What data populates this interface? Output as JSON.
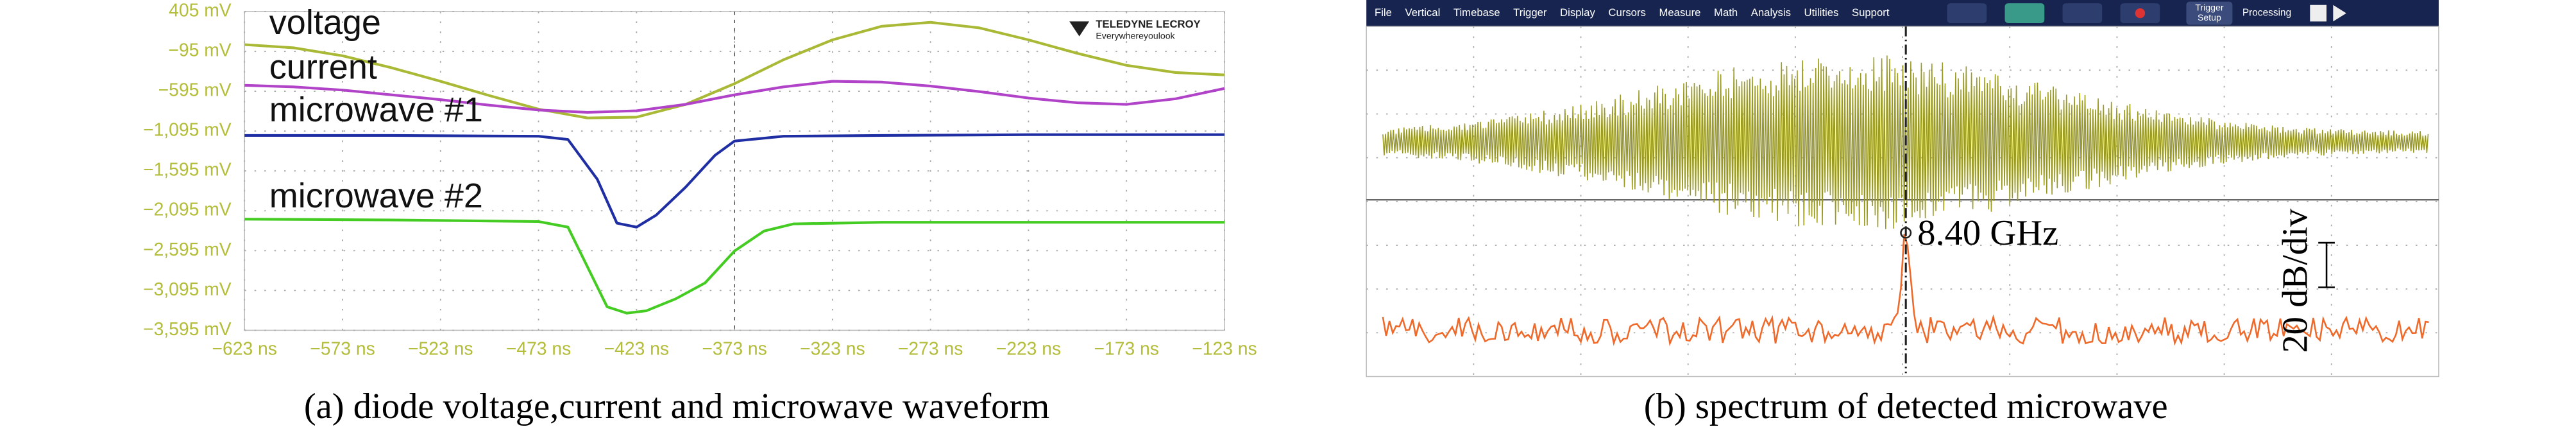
{
  "chart_data": {
    "type": "line",
    "xlim": [
      -623,
      -123
    ],
    "ylim": [
      -3595,
      405
    ],
    "xticks": [
      {
        "value": -623,
        "label": "−623 ns"
      },
      {
        "value": -573,
        "label": "−573 ns"
      },
      {
        "value": -523,
        "label": "−523 ns"
      },
      {
        "value": -473,
        "label": "−473 ns"
      },
      {
        "value": -423,
        "label": "−423 ns"
      },
      {
        "value": -373,
        "label": "−373 ns"
      },
      {
        "value": -323,
        "label": "−323 ns"
      },
      {
        "value": -273,
        "label": "−273 ns"
      },
      {
        "value": -223,
        "label": "−223 ns"
      },
      {
        "value": -173,
        "label": "−173 ns"
      },
      {
        "value": -123,
        "label": "−123 ns"
      }
    ],
    "yticks": [
      {
        "value": 405,
        "label": "405 mV"
      },
      {
        "value": -95,
        "label": "−95 mV"
      },
      {
        "value": -595,
        "label": "−595 mV"
      },
      {
        "value": -1095,
        "label": "−1,095 mV"
      },
      {
        "value": -1595,
        "label": "−1,595 mV"
      },
      {
        "value": -2095,
        "label": "−2,095 mV"
      },
      {
        "value": -2595,
        "label": "−2,595 mV"
      },
      {
        "value": -3095,
        "label": "−3,095 mV"
      },
      {
        "value": -3595,
        "label": "−3,595 mV"
      }
    ],
    "grid": true,
    "logo": [
      "TELEDYNE LECROY",
      "Everywhereyoulook"
    ],
    "series": [
      {
        "name": "voltage",
        "color": "#a9b935",
        "x": [
          -623,
          -598,
          -573,
          -548,
          -523,
          -498,
          -473,
          -448,
          -423,
          -398,
          -373,
          -348,
          -323,
          -298,
          -273,
          -248,
          -223,
          -198,
          -173,
          -148,
          -123
        ],
        "values": [
          -10,
          -50,
          -150,
          -300,
          -470,
          -650,
          -820,
          -930,
          -920,
          -760,
          -500,
          -200,
          50,
          220,
          270,
          200,
          50,
          -120,
          -270,
          -360,
          -390
        ]
      },
      {
        "name": "current",
        "color": "#b043c8",
        "x": [
          -623,
          -598,
          -573,
          -548,
          -523,
          -498,
          -473,
          -448,
          -423,
          -398,
          -373,
          -348,
          -323,
          -298,
          -273,
          -248,
          -223,
          -198,
          -173,
          -148,
          -123
        ],
        "values": [
          -520,
          -540,
          -580,
          -640,
          -700,
          -770,
          -830,
          -860,
          -840,
          -760,
          -640,
          -540,
          -470,
          -480,
          -530,
          -600,
          -680,
          -740,
          -760,
          -690,
          -560
        ]
      },
      {
        "name": "microwave #1",
        "color": "#1f2fa3",
        "x": [
          -623,
          -548,
          -473,
          -458,
          -443,
          -433,
          -423,
          -413,
          -398,
          -383,
          -373,
          -348,
          -298,
          -223,
          -123
        ],
        "values": [
          -1150,
          -1150,
          -1160,
          -1200,
          -1700,
          -2250,
          -2300,
          -2150,
          -1800,
          -1400,
          -1220,
          -1160,
          -1150,
          -1140,
          -1140
        ]
      },
      {
        "name": "microwave #2",
        "color": "#44cc22",
        "x": [
          -623,
          -548,
          -473,
          -458,
          -448,
          -438,
          -428,
          -418,
          -403,
          -388,
          -373,
          -358,
          -343,
          -298,
          -223,
          -123
        ],
        "values": [
          -2200,
          -2210,
          -2230,
          -2300,
          -2800,
          -3300,
          -3380,
          -3350,
          -3200,
          -3000,
          -2600,
          -2350,
          -2260,
          -2240,
          -2240,
          -2240
        ]
      }
    ]
  },
  "right_panel": {
    "menu": [
      "File",
      "Vertical",
      "Timebase",
      "Trigger",
      "Display",
      "Cursors",
      "Measure",
      "Math",
      "Analysis",
      "Utilities",
      "Support"
    ],
    "trigger_setup": [
      "Trigger",
      "Setup"
    ],
    "processing": "Processing",
    "peak_label": "8.40 GHz",
    "scale_label": "20 dB/div"
  },
  "captions": [
    "(a) diode voltage,current and microwave waveform",
    "(b) spectrum of detected microwave"
  ]
}
